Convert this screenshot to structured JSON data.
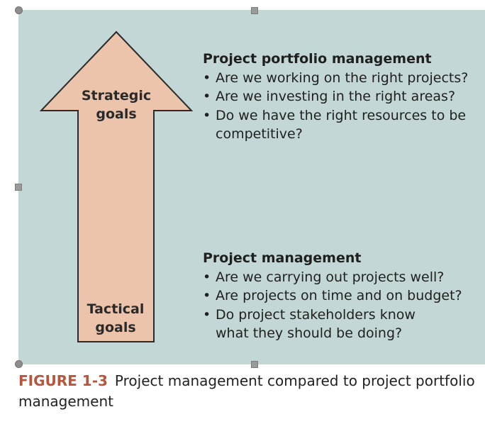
{
  "diagram": {
    "arrow": {
      "top_label": "Strategic goals",
      "bottom_label_line1": "Tactical",
      "bottom_label_line2": "goals",
      "fill_color": "#ecc4ab",
      "stroke_color": "#2b2b2b"
    },
    "portfolio_block": {
      "heading": "Project portfolio management",
      "items": [
        "Are we working on the right projects?",
        "Are we investing in the right areas?",
        "Do we have the right resources to be competitive?"
      ]
    },
    "project_block": {
      "heading": "Project management",
      "items": [
        "Are we carrying out projects well?",
        "Are projects on time and on budget?",
        "Do project stakeholders know what they should be doing?"
      ]
    },
    "background_color": "#c3d7d6"
  },
  "caption": {
    "label": "FIGURE 1-3",
    "text": "Project management compared to project portfolio management",
    "label_color": "#b5563e"
  }
}
